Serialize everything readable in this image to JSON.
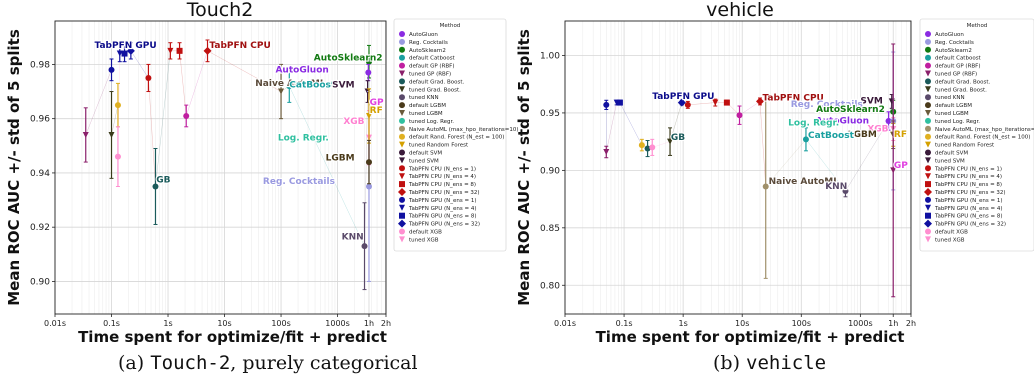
{
  "captions": [
    {
      "letter": "(a)",
      "code": "Touch-2",
      "rest": ", purely categorical"
    },
    {
      "letter": "(b)",
      "code": "vehicle",
      "rest": ""
    }
  ],
  "chart_data": [
    {
      "type": "scatter",
      "title": "Touch2",
      "xlabel": "Time spent for optimize/fit + predict",
      "ylabel": "Mean ROC AUC +/- std of 5 splits",
      "x_scale": "log",
      "xlim_seconds": [
        0.01,
        7200
      ],
      "ylim": [
        0.888,
        0.996
      ],
      "x_ticks": [
        {
          "v": 0.01,
          "label": "0.01s"
        },
        {
          "v": 0.1,
          "label": "0.1s"
        },
        {
          "v": 1,
          "label": "1s"
        },
        {
          "v": 10,
          "label": "10s"
        },
        {
          "v": 100,
          "label": "100s"
        },
        {
          "v": 1000,
          "label": "1000s"
        },
        {
          "v": 3600,
          "label": "1h"
        },
        {
          "v": 7200,
          "label": "2h"
        }
      ],
      "y_ticks": [
        {
          "v": 0.9,
          "label": "0.90"
        },
        {
          "v": 0.92,
          "label": "0.92"
        },
        {
          "v": 0.94,
          "label": "0.94"
        },
        {
          "v": 0.96,
          "label": "0.96"
        },
        {
          "v": 0.98,
          "label": "0.98"
        }
      ],
      "grid": true,
      "points": [
        {
          "series": "TabPFN GPU (N_ens = 1)",
          "x": 0.1,
          "y": 0.978,
          "err": 0.004
        },
        {
          "series": "TabPFN GPU (N_ens = 4)",
          "x": 0.14,
          "y": 0.984,
          "err": 0.003
        },
        {
          "series": "TabPFN GPU (N_ens = 8)",
          "x": 0.17,
          "y": 0.984,
          "err": 0.003
        },
        {
          "series": "TabPFN GPU (N_ens = 32)",
          "x": 0.22,
          "y": 0.985,
          "err": 0.003
        },
        {
          "series": "TabPFN CPU (N_ens = 1)",
          "x": 0.45,
          "y": 0.975,
          "err": 0.005
        },
        {
          "series": "TabPFN CPU (N_ens = 4)",
          "x": 1.1,
          "y": 0.985,
          "err": 0.003
        },
        {
          "series": "TabPFN CPU (N_ens = 8)",
          "x": 1.6,
          "y": 0.985,
          "err": 0.003
        },
        {
          "series": "TabPFN CPU (N_ens = 32)",
          "x": 5.0,
          "y": 0.985,
          "err": 0.004
        },
        {
          "series": "tuned GP (RBF)",
          "x": 0.035,
          "y": 0.954,
          "err": 0.01
        },
        {
          "series": "tuned Grad. Boost.",
          "x": 0.1,
          "y": 0.954,
          "err": 0.016
        },
        {
          "series": "default Rand. Forest (N_est = 100)",
          "x": 0.13,
          "y": 0.965,
          "err": 0.008
        },
        {
          "series": "default XGB",
          "x": 0.13,
          "y": 0.946,
          "err": 0.011
        },
        {
          "series": "default Grad. Boost.",
          "x": 0.6,
          "y": 0.935,
          "err": 0.014
        },
        {
          "series": "default GP (RBF)",
          "x": 2.1,
          "y": 0.961,
          "err": 0.004
        },
        {
          "series": "tuned LGBM",
          "x": 100,
          "y": 0.97,
          "err": 0.01
        },
        {
          "series": "default Catboost",
          "x": 140,
          "y": 0.972,
          "err": 0.006
        },
        {
          "series": "AutoSklearn2",
          "x": 3600,
          "y": 0.981,
          "err": 0.006
        },
        {
          "series": "AutoGluon",
          "x": 3500,
          "y": 0.977,
          "err": 0.003
        },
        {
          "series": "tuned SVM",
          "x": 3400,
          "y": 0.97,
          "err": 0.004
        },
        {
          "series": "tuned KNN",
          "x": 3000,
          "y": 0.913,
          "err": 0.016
        },
        {
          "series": "Reg. Cocktails",
          "x": 3600,
          "y": 0.935,
          "err": 0.035
        },
        {
          "series": "tuned XGB",
          "x": 3600,
          "y": 0.953,
          "err": 0.01
        },
        {
          "series": "tuned Random Forest",
          "x": 3600,
          "y": 0.961,
          "err": 0.01
        },
        {
          "series": "default LGBM",
          "x": 3600,
          "y": 0.944,
          "err": 0.008
        }
      ],
      "annotations": [
        {
          "text": "TabPFN GPU",
          "color": "#0b0b8a",
          "x": 0.05,
          "y": 0.986
        },
        {
          "text": "TabPFN CPU",
          "color": "#a01010",
          "x": 5.4,
          "y": 0.986
        },
        {
          "text": "AutoSklearn2",
          "color": "#127a12",
          "x": 380,
          "y": 0.9815
        },
        {
          "text": "AutoGluon",
          "color": "#8a2be2",
          "x": 700,
          "y": 0.977
        },
        {
          "text": "Naive AutoML",
          "color": "#5a4a3a",
          "x": 35,
          "y": 0.972
        },
        {
          "text": "CatBoost",
          "color": "#1aa0a0",
          "x": 140,
          "y": 0.9715
        },
        {
          "text": "SVM",
          "color": "#3a1a3a",
          "x": 2000,
          "y": 0.9715
        },
        {
          "text": "GP",
          "color": "#e040e0",
          "x": 3700,
          "y": 0.965
        },
        {
          "text": "RF",
          "color": "#d4a000",
          "x": 3700,
          "y": 0.962
        },
        {
          "text": "XGB",
          "color": "#ff7fd0",
          "x": 3000,
          "y": 0.958
        },
        {
          "text": "Log. Regr.",
          "color": "#30c0a0",
          "x": 700,
          "y": 0.952
        },
        {
          "text": "LGBM",
          "color": "#4a3a1a",
          "x": 2000,
          "y": 0.9445
        },
        {
          "text": "GB",
          "color": "#1a5a5a",
          "x": 0.62,
          "y": 0.9365
        },
        {
          "text": "Reg. Cocktails",
          "color": "#9a9ae0",
          "x": 900,
          "y": 0.936
        },
        {
          "text": "KNN",
          "color": "#5a4a6a",
          "x": 2900,
          "y": 0.9155
        }
      ]
    },
    {
      "type": "scatter",
      "title": "vehicle",
      "xlabel": "Time spent for optimize/fit + predict",
      "ylabel": "Mean ROC AUC +/- std of 5 splits",
      "x_scale": "log",
      "xlim_seconds": [
        0.01,
        7200
      ],
      "ylim": [
        0.775,
        1.03
      ],
      "x_ticks": [
        {
          "v": 0.01,
          "label": "0.01s"
        },
        {
          "v": 0.1,
          "label": "0.1s"
        },
        {
          "v": 1,
          "label": "1s"
        },
        {
          "v": 10,
          "label": "10s"
        },
        {
          "v": 100,
          "label": "100s"
        },
        {
          "v": 1000,
          "label": "1000s"
        },
        {
          "v": 3600,
          "label": "1h"
        },
        {
          "v": 7200,
          "label": "2h"
        }
      ],
      "y_ticks": [
        {
          "v": 0.8,
          "label": "0.80"
        },
        {
          "v": 0.85,
          "label": "0.85"
        },
        {
          "v": 0.9,
          "label": "0.90"
        },
        {
          "v": 0.95,
          "label": "0.95"
        },
        {
          "v": 1.0,
          "label": "1.00"
        }
      ],
      "grid": true,
      "points": [
        {
          "series": "TabPFN GPU (N_ens = 1)",
          "x": 0.05,
          "y": 0.957,
          "err": 0.004
        },
        {
          "series": "TabPFN GPU (N_ens = 4)",
          "x": 0.075,
          "y": 0.959,
          "err": 0.002
        },
        {
          "series": "TabPFN GPU (N_ens = 8)",
          "x": 0.085,
          "y": 0.959,
          "err": 0.002
        },
        {
          "series": "TabPFN GPU (N_ens = 32)",
          "x": 0.95,
          "y": 0.959,
          "err": 0.002
        },
        {
          "series": "TabPFN CPU (N_ens = 1)",
          "x": 1.2,
          "y": 0.957,
          "err": 0.003
        },
        {
          "series": "TabPFN CPU (N_ens = 4)",
          "x": 3.5,
          "y": 0.959,
          "err": 0.003
        },
        {
          "series": "TabPFN CPU (N_ens = 8)",
          "x": 5.5,
          "y": 0.959,
          "err": 0.002
        },
        {
          "series": "TabPFN CPU (N_ens = 32)",
          "x": 20,
          "y": 0.96,
          "err": 0.003
        },
        {
          "series": "tuned GP (RBF)",
          "x": 0.05,
          "y": 0.916,
          "err": 0.005
        },
        {
          "series": "default Rand. Forest (N_est = 100)",
          "x": 0.2,
          "y": 0.922,
          "err": 0.005
        },
        {
          "series": "default Grad. Boost.",
          "x": 0.25,
          "y": 0.919,
          "err": 0.007
        },
        {
          "series": "default XGB",
          "x": 0.3,
          "y": 0.92,
          "err": 0.007
        },
        {
          "series": "tuned Grad. Boost.",
          "x": 0.6,
          "y": 0.925,
          "err": 0.012
        },
        {
          "series": "default GP (RBF)",
          "x": 9,
          "y": 0.948,
          "err": 0.008
        },
        {
          "series": "Naive AutoML (max_hpo_iterations=10)",
          "x": 25,
          "y": 0.886,
          "err": 0.08
        },
        {
          "series": "default Catboost",
          "x": 120,
          "y": 0.927,
          "err": 0.01
        },
        {
          "series": "tuned KNN",
          "x": 560,
          "y": 0.882,
          "err": 0.005
        },
        {
          "series": "AutoGluon",
          "x": 3000,
          "y": 0.943,
          "err": 0.008
        },
        {
          "series": "AutoSklearn2",
          "x": 3600,
          "y": 0.951,
          "err": 0.01
        },
        {
          "series": "tuned SVM",
          "x": 3400,
          "y": 0.96,
          "err": 0.006
        },
        {
          "series": "Reg. Cocktails",
          "x": 3600,
          "y": 0.943,
          "err": 0.06
        },
        {
          "series": "tuned XGB",
          "x": 3600,
          "y": 0.936,
          "err": 0.01
        },
        {
          "series": "tuned Random Forest",
          "x": 3600,
          "y": 0.931,
          "err": 0.01
        },
        {
          "series": "tuned LGBM",
          "x": 3600,
          "y": 0.931,
          "err": 0.012
        },
        {
          "series": "tuned GP (RBF)",
          "x": 3600,
          "y": 0.9,
          "err": 0.11
        }
      ],
      "annotations": [
        {
          "text": "TabPFN GPU",
          "color": "#0b0b8a",
          "x": 0.3,
          "y": 0.962
        },
        {
          "text": "TabPFN CPU",
          "color": "#a01010",
          "x": 22,
          "y": 0.961
        },
        {
          "text": "SVM",
          "color": "#3a1a3a",
          "x": 2400,
          "y": 0.958
        },
        {
          "text": "Reg. Cocktails",
          "color": "#9a9ae0",
          "x": 1100,
          "y": 0.955
        },
        {
          "text": "AutoSklearn2",
          "color": "#127a12",
          "x": 2600,
          "y": 0.951
        },
        {
          "text": "AutoGluon",
          "color": "#8a2be2",
          "x": 1400,
          "y": 0.941
        },
        {
          "text": "XGB",
          "color": "#ff7fd0",
          "x": 3000,
          "y": 0.934
        },
        {
          "text": "LGBM",
          "color": "#4a3a1a",
          "x": 1900,
          "y": 0.929
        },
        {
          "text": "RF",
          "color": "#d4a000",
          "x": 3700,
          "y": 0.929
        },
        {
          "text": "Log. Regr.",
          "color": "#30c0a0",
          "x": 60,
          "y": 0.939
        },
        {
          "text": "CatBoost",
          "color": "#1aa0a0",
          "x": 130,
          "y": 0.928
        },
        {
          "text": "GB",
          "color": "#1a5a5a",
          "x": 0.62,
          "y": 0.9265
        },
        {
          "text": "Naive AutoML",
          "color": "#5a4a3a",
          "x": 28,
          "y": 0.888
        },
        {
          "text": "KNN",
          "color": "#5a4a6a",
          "x": 600,
          "y": 0.884
        },
        {
          "text": "GP",
          "color": "#e040e0",
          "x": 3700,
          "y": 0.902
        }
      ]
    }
  ],
  "legend": {
    "title": "Method",
    "placement": "right of each plot",
    "entries": [
      {
        "label": "AutoGluon",
        "color": "#8a2be2",
        "marker": "circle"
      },
      {
        "label": "Reg. Cocktails",
        "color": "#9a9ae0",
        "marker": "circle"
      },
      {
        "label": "AutoSklearn2",
        "color": "#127a12",
        "marker": "circle"
      },
      {
        "label": "default Catboost",
        "color": "#1aa0a0",
        "marker": "circle"
      },
      {
        "label": "default GP (RBF)",
        "color": "#c01fa0",
        "marker": "circle"
      },
      {
        "label": "tuned GP (RBF)",
        "color": "#8a1f6a",
        "marker": "tri"
      },
      {
        "label": "default Grad. Boost.",
        "color": "#1a5a5a",
        "marker": "circle"
      },
      {
        "label": "tuned Grad. Boost.",
        "color": "#3a3a1a",
        "marker": "tri"
      },
      {
        "label": "tuned KNN",
        "color": "#5a4a6a",
        "marker": "circle"
      },
      {
        "label": "default LGBM",
        "color": "#4a3a1a",
        "marker": "circle"
      },
      {
        "label": "tuned LGBM",
        "color": "#6a5a3a",
        "marker": "tri"
      },
      {
        "label": "tuned Log. Regr.",
        "color": "#30c0a0",
        "marker": "circle"
      },
      {
        "label": "Naive AutoML (max_hpo_iterations=10)",
        "color": "#a0906a",
        "marker": "circle"
      },
      {
        "label": "default Rand. Forest (N_est = 100)",
        "color": "#e0b020",
        "marker": "circle"
      },
      {
        "label": "tuned Random Forest",
        "color": "#d4a000",
        "marker": "tri"
      },
      {
        "label": "default SVM",
        "color": "#3a1a3a",
        "marker": "circle"
      },
      {
        "label": "tuned SVM",
        "color": "#3a1a3a",
        "marker": "tri"
      },
      {
        "label": "TabPFN CPU (N_ens =  1)",
        "color": "#c01010",
        "marker": "circle"
      },
      {
        "label": "TabPFN CPU (N_ens =  4)",
        "color": "#c01010",
        "marker": "tri"
      },
      {
        "label": "TabPFN CPU (N_ens =  8)",
        "color": "#c01010",
        "marker": "square"
      },
      {
        "label": "TabPFN CPU (N_ens = 32)",
        "color": "#c01010",
        "marker": "diamond"
      },
      {
        "label": "TabPFN GPU (N_ens =  1)",
        "color": "#1010a0",
        "marker": "circle"
      },
      {
        "label": "TabPFN GPU (N_ens =  4)",
        "color": "#1010a0",
        "marker": "tri"
      },
      {
        "label": "TabPFN GPU (N_ens =  8)",
        "color": "#1010a0",
        "marker": "square"
      },
      {
        "label": "TabPFN GPU (N_ens = 32)",
        "color": "#1010a0",
        "marker": "diamond"
      },
      {
        "label": "default XGB",
        "color": "#ff8fd0",
        "marker": "circle"
      },
      {
        "label": "tuned XGB",
        "color": "#ff8fd0",
        "marker": "tri"
      }
    ]
  }
}
